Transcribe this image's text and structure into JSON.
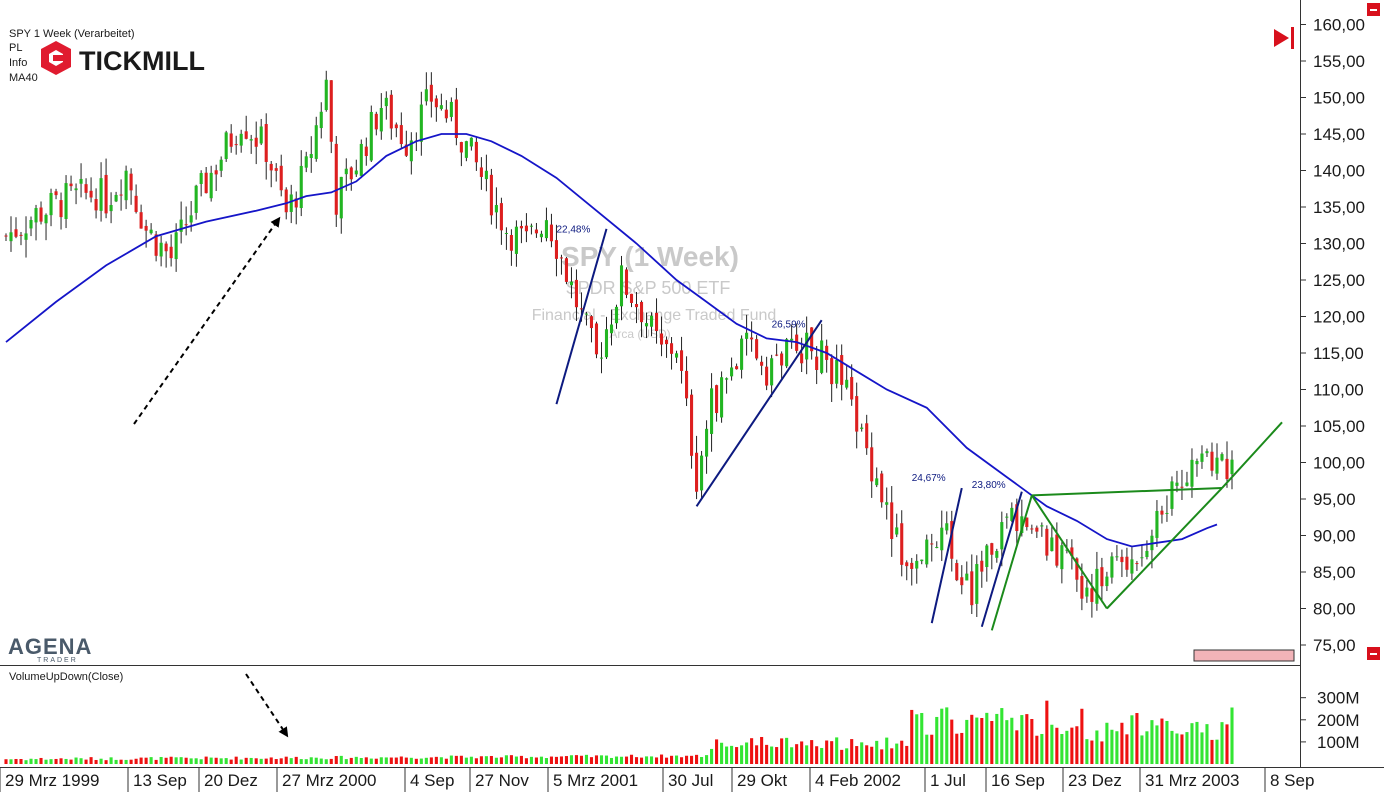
{
  "header": {
    "title": "SPY 1 Week (Verarbeitet)",
    "lines": [
      "PL",
      "Info"
    ],
    "ma_label": "MA40",
    "brand": "TICKMILL"
  },
  "watermark": {
    "symbol": "SPY (1 Week)",
    "name": "SPDR S&P 500 ETF",
    "type": "Financial - Exchange Traded Fund",
    "exchange": "Arca (USD)"
  },
  "footer_logo": {
    "main": "AGENA",
    "sub": "TRADER"
  },
  "volume_panel": {
    "label": "VolumeUpDown(Close)"
  },
  "colors": {
    "up": "#22b522",
    "down": "#dd1f1f",
    "ma": "#1515c8",
    "trend_blue": "#0d1a80",
    "pattern_green": "#1b8a1b",
    "vol_up": "#33e533",
    "vol_down": "#ee1111"
  },
  "chart_data": {
    "type": "candlestick",
    "y_axis": {
      "range": [
        73.5,
        162.5
      ],
      "ticks": [
        "160,00",
        "155,00",
        "150,00",
        "145,00",
        "140,00",
        "135,00",
        "130,00",
        "125,00",
        "120,00",
        "115,00",
        "110,00",
        "105,00",
        "100,00",
        "95,00",
        "90,00",
        "85,00",
        "80,00",
        "75,00"
      ]
    },
    "volume_axis": {
      "range": [
        0,
        380
      ],
      "unit": "M",
      "ticks": [
        "300M",
        "200M",
        "100M"
      ]
    },
    "x_axis_labels": [
      "29 Mrz 1999",
      "13 Sep",
      "20 Dez",
      "27 Mrz 2000",
      "4 Sep",
      "27 Nov",
      "5 Mrz 2001",
      "30 Jul",
      "29 Okt",
      "4 Feb 2002",
      "1 Jul",
      "16 Sep",
      "23 Dez",
      "31 Mrz 2003",
      "8 Sep"
    ],
    "weeks": 246,
    "price_path": [
      {
        "w": 0,
        "p": 131
      },
      {
        "w": 6,
        "p": 134
      },
      {
        "w": 12,
        "p": 136
      },
      {
        "w": 18,
        "p": 137
      },
      {
        "w": 20,
        "p": 136
      },
      {
        "w": 24,
        "p": 140
      },
      {
        "w": 28,
        "p": 132
      },
      {
        "w": 33,
        "p": 128
      },
      {
        "w": 38,
        "p": 136
      },
      {
        "w": 43,
        "p": 142
      },
      {
        "w": 47,
        "p": 147
      },
      {
        "w": 52,
        "p": 143
      },
      {
        "w": 56,
        "p": 134
      },
      {
        "w": 60,
        "p": 140
      },
      {
        "w": 64,
        "p": 152
      },
      {
        "w": 66,
        "p": 136
      },
      {
        "w": 70,
        "p": 141
      },
      {
        "w": 75,
        "p": 149
      },
      {
        "w": 80,
        "p": 144
      },
      {
        "w": 85,
        "p": 150
      },
      {
        "w": 89,
        "p": 147
      },
      {
        "w": 93,
        "p": 142
      },
      {
        "w": 100,
        "p": 132
      },
      {
        "w": 104,
        "p": 130
      },
      {
        "w": 108,
        "p": 134
      },
      {
        "w": 112,
        "p": 126
      },
      {
        "w": 118,
        "p": 114
      },
      {
        "w": 123,
        "p": 125
      },
      {
        "w": 127,
        "p": 121
      },
      {
        "w": 131,
        "p": 115
      },
      {
        "w": 134,
        "p": 116
      },
      {
        "w": 138,
        "p": 98
      },
      {
        "w": 141,
        "p": 108
      },
      {
        "w": 146,
        "p": 114
      },
      {
        "w": 149,
        "p": 116
      },
      {
        "w": 152,
        "p": 113
      },
      {
        "w": 156,
        "p": 115
      },
      {
        "w": 159,
        "p": 116
      },
      {
        "w": 164,
        "p": 114
      },
      {
        "w": 167,
        "p": 111
      },
      {
        "w": 174,
        "p": 98
      },
      {
        "w": 180,
        "p": 85
      },
      {
        "w": 184,
        "p": 89
      },
      {
        "w": 187,
        "p": 91
      },
      {
        "w": 190,
        "p": 86
      },
      {
        "w": 193,
        "p": 82
      },
      {
        "w": 197,
        "p": 89
      },
      {
        "w": 202,
        "p": 93
      },
      {
        "w": 206,
        "p": 90
      },
      {
        "w": 210,
        "p": 88
      },
      {
        "w": 214,
        "p": 84
      },
      {
        "w": 218,
        "p": 83
      },
      {
        "w": 221,
        "p": 86
      },
      {
        "w": 224,
        "p": 87
      },
      {
        "w": 228,
        "p": 89
      },
      {
        "w": 232,
        "p": 95
      },
      {
        "w": 236,
        "p": 99
      },
      {
        "w": 240,
        "p": 100
      },
      {
        "w": 245,
        "p": 100
      }
    ],
    "ma40_path": [
      {
        "w": 0,
        "p": 116.5
      },
      {
        "w": 10,
        "p": 122
      },
      {
        "w": 20,
        "p": 127
      },
      {
        "w": 30,
        "p": 131
      },
      {
        "w": 40,
        "p": 133
      },
      {
        "w": 50,
        "p": 134.5
      },
      {
        "w": 56,
        "p": 135.5
      },
      {
        "w": 60,
        "p": 136.5
      },
      {
        "w": 65,
        "p": 137
      },
      {
        "w": 70,
        "p": 138.5
      },
      {
        "w": 76,
        "p": 142
      },
      {
        "w": 82,
        "p": 144
      },
      {
        "w": 87,
        "p": 145
      },
      {
        "w": 92,
        "p": 145
      },
      {
        "w": 97,
        "p": 144
      },
      {
        "w": 103,
        "p": 142
      },
      {
        "w": 110,
        "p": 139
      },
      {
        "w": 118,
        "p": 134.5
      },
      {
        "w": 126,
        "p": 130
      },
      {
        "w": 134,
        "p": 125
      },
      {
        "w": 140,
        "p": 122
      },
      {
        "w": 146,
        "p": 119
      },
      {
        "w": 152,
        "p": 117
      },
      {
        "w": 158,
        "p": 116.5
      },
      {
        "w": 164,
        "p": 115
      },
      {
        "w": 170,
        "p": 112.5
      },
      {
        "w": 176,
        "p": 110
      },
      {
        "w": 184,
        "p": 107.5
      },
      {
        "w": 192,
        "p": 102
      },
      {
        "w": 200,
        "p": 98
      },
      {
        "w": 208,
        "p": 94
      },
      {
        "w": 214,
        "p": 92
      },
      {
        "w": 220,
        "p": 89.5
      },
      {
        "w": 225,
        "p": 88.5
      },
      {
        "w": 230,
        "p": 89
      },
      {
        "w": 235,
        "p": 89.5
      },
      {
        "w": 240,
        "p": 91
      },
      {
        "w": 242,
        "p": 91.5
      }
    ],
    "annotations": [
      {
        "text": "22,48%",
        "w": 112,
        "p": 131.5
      },
      {
        "text": "26,59%",
        "w": 155,
        "p": 118.5
      },
      {
        "text": "24,67%",
        "w": 183,
        "p": 97.5
      },
      {
        "text": "23,80%",
        "w": 195,
        "p": 96.5
      }
    ],
    "trend_lines": [
      {
        "from": {
          "w": 110,
          "p": 108
        },
        "to": {
          "w": 120,
          "p": 132
        }
      },
      {
        "from": {
          "w": 138,
          "p": 94
        },
        "to": {
          "w": 163,
          "p": 119.5
        }
      },
      {
        "from": {
          "w": 185,
          "p": 78
        },
        "to": {
          "w": 191,
          "p": 96.5
        }
      },
      {
        "from": {
          "w": 195,
          "p": 77.5
        },
        "to": {
          "w": 203,
          "p": 96
        }
      }
    ],
    "pattern_lines": [
      {
        "from": {
          "w": 197,
          "p": 77
        },
        "to": {
          "w": 205,
          "p": 95.5
        }
      },
      {
        "from": {
          "w": 205,
          "p": 95.5
        },
        "to": {
          "w": 220,
          "p": 80
        }
      },
      {
        "from": {
          "w": 220,
          "p": 80
        },
        "to": {
          "w": 243,
          "p": 96.5
        }
      },
      {
        "from": {
          "w": 205,
          "p": 95.5
        },
        "to": {
          "w": 243,
          "p": 96.5
        }
      },
      {
        "from": {
          "w": 243,
          "p": 96.5
        },
        "to": {
          "w": 255,
          "p": 105.5
        }
      }
    ],
    "grid": false,
    "legend": "none"
  }
}
